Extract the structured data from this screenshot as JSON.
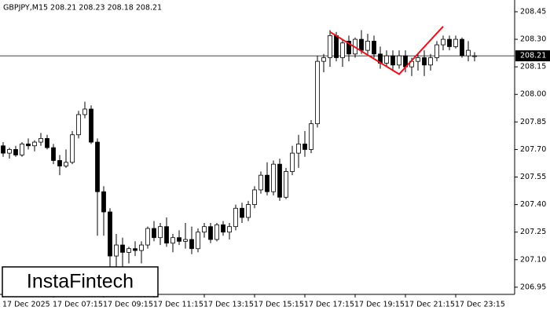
{
  "chart_data": {
    "type": "candlestick",
    "title": "GBPJPY,M15  208.21 208.23 208.18 208.21",
    "watermark": "InstaFintech",
    "up_color": "#ffffff",
    "down_color": "#000000",
    "edge_color": "#000000",
    "categories": [
      "17 Dec 2025",
      null,
      null,
      null,
      null,
      null,
      null,
      null,
      "17 Dec 07:15",
      null,
      null,
      null,
      null,
      null,
      null,
      null,
      "17 Dec 09:15",
      null,
      null,
      null,
      null,
      null,
      null,
      null,
      "17 Dec 11:15",
      null,
      null,
      null,
      null,
      null,
      null,
      null,
      "17 Dec 13:15",
      null,
      null,
      null,
      null,
      null,
      null,
      null,
      "17 Dec 15:15",
      null,
      null,
      null,
      null,
      null,
      null,
      null,
      "17 Dec 17:15",
      null,
      null,
      null,
      null,
      null,
      null,
      null,
      "17 Dec 19:15",
      null,
      null,
      null,
      null,
      null,
      null,
      null,
      "17 Dec 21:15",
      null,
      null,
      null,
      null,
      null,
      null,
      null,
      "17 Dec 23:15",
      null,
      null,
      null
    ],
    "open": [
      207.72,
      207.68,
      207.7,
      207.67,
      207.73,
      207.72,
      207.74,
      207.76,
      207.71,
      207.64,
      207.61,
      207.63,
      207.78,
      207.89,
      207.92,
      207.74,
      207.47,
      207.36,
      207.12,
      207.18,
      207.14,
      207.16,
      207.15,
      207.18,
      207.27,
      207.22,
      207.28,
      207.19,
      207.22,
      207.2,
      207.21,
      207.16,
      207.25,
      207.28,
      207.21,
      207.29,
      207.25,
      207.28,
      207.38,
      207.33,
      207.4,
      207.48,
      207.56,
      207.47,
      207.62,
      207.44,
      207.58,
      207.68,
      207.73,
      207.7,
      207.84,
      208.18,
      208.2,
      208.32,
      208.2,
      208.29,
      208.22,
      208.3,
      208.24,
      208.29,
      208.22,
      208.17,
      208.21,
      208.16,
      208.21,
      208.15,
      208.18,
      208.2,
      208.16,
      208.2,
      208.27,
      208.3,
      208.26,
      208.3,
      208.21,
      208.21
    ],
    "high": [
      207.74,
      207.71,
      207.72,
      207.74,
      207.76,
      207.75,
      207.79,
      207.78,
      207.73,
      207.67,
      207.7,
      207.8,
      207.91,
      207.96,
      207.94,
      207.76,
      207.5,
      207.38,
      207.24,
      207.22,
      207.17,
      207.2,
      207.2,
      207.28,
      207.31,
      207.3,
      207.33,
      207.24,
      207.26,
      207.3,
      207.28,
      207.27,
      207.3,
      207.3,
      207.3,
      207.31,
      207.3,
      207.4,
      207.41,
      207.42,
      207.5,
      207.58,
      207.63,
      207.64,
      207.65,
      207.6,
      207.72,
      207.78,
      207.8,
      207.86,
      208.21,
      208.22,
      208.35,
      208.34,
      208.3,
      208.32,
      208.31,
      208.35,
      208.33,
      208.32,
      208.26,
      208.24,
      208.24,
      208.24,
      208.24,
      208.2,
      208.22,
      208.24,
      208.22,
      208.29,
      208.32,
      208.32,
      208.32,
      208.31,
      208.29,
      208.23
    ],
    "low": [
      207.66,
      207.65,
      207.66,
      207.66,
      207.7,
      207.69,
      207.72,
      207.7,
      207.62,
      207.56,
      207.6,
      207.62,
      207.76,
      207.87,
      207.73,
      207.23,
      207.23,
      207.02,
      207.05,
      207.06,
      207.08,
      207.12,
      207.08,
      207.16,
      207.2,
      207.18,
      207.17,
      207.14,
      207.18,
      207.16,
      207.13,
      207.14,
      207.22,
      207.19,
      207.2,
      207.23,
      207.21,
      207.26,
      207.3,
      207.31,
      207.38,
      207.46,
      207.45,
      207.45,
      207.42,
      207.43,
      207.56,
      207.6,
      207.66,
      207.68,
      207.82,
      208.12,
      208.15,
      208.18,
      208.15,
      208.18,
      208.2,
      208.22,
      208.22,
      208.2,
      208.14,
      208.15,
      208.13,
      208.14,
      208.12,
      208.1,
      208.13,
      208.1,
      208.13,
      208.18,
      208.24,
      208.24,
      208.25,
      208.2,
      208.18,
      208.18
    ],
    "close": [
      207.68,
      207.7,
      207.67,
      207.73,
      207.72,
      207.74,
      207.76,
      207.71,
      207.64,
      207.61,
      207.63,
      207.78,
      207.89,
      207.92,
      207.74,
      207.47,
      207.36,
      207.12,
      207.18,
      207.14,
      207.16,
      207.15,
      207.18,
      207.27,
      207.22,
      207.28,
      207.19,
      207.22,
      207.2,
      207.21,
      207.16,
      207.25,
      207.28,
      207.21,
      207.29,
      207.25,
      207.28,
      207.38,
      207.33,
      207.4,
      207.48,
      207.56,
      207.47,
      207.62,
      207.44,
      207.58,
      207.68,
      207.73,
      207.7,
      207.84,
      208.18,
      208.2,
      208.32,
      208.2,
      208.28,
      208.22,
      208.3,
      208.24,
      208.29,
      208.22,
      208.17,
      208.21,
      208.16,
      208.21,
      208.15,
      208.18,
      208.2,
      208.16,
      208.2,
      208.27,
      208.3,
      208.26,
      208.3,
      208.21,
      208.24,
      208.21
    ],
    "price_line": 208.21,
    "pattern": {
      "color": "#e8101a",
      "x": [
        52,
        63,
        70
      ],
      "y": [
        208.34,
        208.11,
        208.37
      ]
    },
    "ylim": [
      206.911,
      208.514
    ],
    "yticks": [
      206.95,
      {
        "value": 207.1,
        "label": "207.10"
      },
      207.25,
      {
        "value": 207.4,
        "label": "207.40"
      },
      207.55,
      {
        "value": 207.7,
        "label": "207.70"
      },
      207.85,
      {
        "value": 208.0,
        "label": "208.00"
      },
      208.15,
      {
        "value": 208.3,
        "label": "208.30"
      },
      208.45
    ]
  }
}
